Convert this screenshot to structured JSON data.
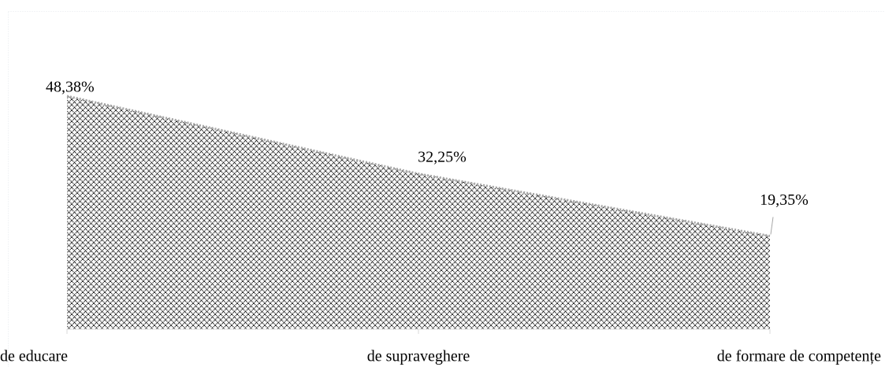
{
  "chart_data": {
    "type": "area",
    "categories": [
      "de educare",
      "de supraveghere",
      "de formare de competențe"
    ],
    "values": [
      48.38,
      32.25,
      19.35
    ],
    "value_labels": [
      "48,38%",
      "32,25%",
      "19,35%"
    ],
    "color": "#000000"
  }
}
